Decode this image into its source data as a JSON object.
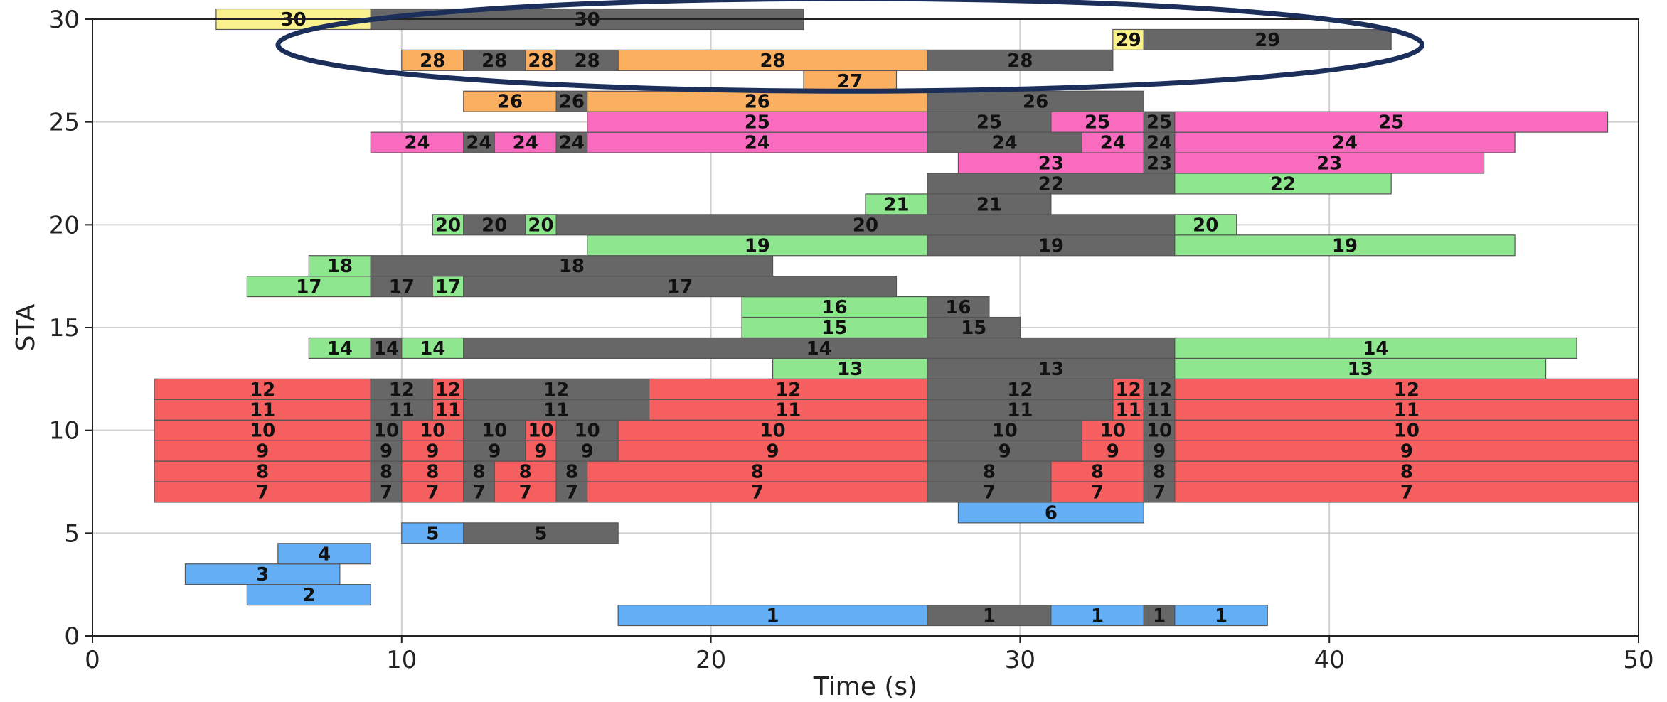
{
  "chart_data": {
    "type": "bar",
    "orientation": "horizontal-timeline",
    "title": "",
    "xlabel": "Time (s)",
    "ylabel": "STA",
    "xlim": [
      0,
      50
    ],
    "ylim": [
      0,
      30
    ],
    "xticks": [
      0,
      10,
      20,
      30,
      40,
      50
    ],
    "yticks": [
      0,
      5,
      10,
      15,
      20,
      25,
      30
    ],
    "grid": true,
    "legend": "none",
    "colors": {
      "red": "#f55f5f",
      "green": "#8ee68e",
      "blue": "#63aef5",
      "orange": "#fbb061",
      "pink": "#f96bbf",
      "yellow": "#fbf28f",
      "gray": "#676767",
      "highlight_ellipse": "#1b2f5a"
    },
    "highlight_ellipse": {
      "x_range": [
        6,
        43
      ],
      "y_range": [
        26.5,
        31
      ]
    },
    "segments": [
      {
        "sta": 1,
        "start": 17,
        "end": 27,
        "color": "blue",
        "label": "1"
      },
      {
        "sta": 1,
        "start": 27,
        "end": 31,
        "color": "gray",
        "label": "1"
      },
      {
        "sta": 1,
        "start": 31,
        "end": 34,
        "color": "blue",
        "label": "1"
      },
      {
        "sta": 1,
        "start": 34,
        "end": 35,
        "color": "gray",
        "label": "1"
      },
      {
        "sta": 1,
        "start": 35,
        "end": 38,
        "color": "blue",
        "label": "1"
      },
      {
        "sta": 2,
        "start": 5,
        "end": 9,
        "color": "blue",
        "label": "2"
      },
      {
        "sta": 3,
        "start": 3,
        "end": 8,
        "color": "blue",
        "label": "3"
      },
      {
        "sta": 4,
        "start": 6,
        "end": 9,
        "color": "blue",
        "label": "4"
      },
      {
        "sta": 5,
        "start": 10,
        "end": 12,
        "color": "blue",
        "label": "5"
      },
      {
        "sta": 5,
        "start": 12,
        "end": 17,
        "color": "gray",
        "label": "5"
      },
      {
        "sta": 6,
        "start": 28,
        "end": 34,
        "color": "blue",
        "label": "6"
      },
      {
        "sta": 7,
        "start": 2,
        "end": 9,
        "color": "red",
        "label": "7"
      },
      {
        "sta": 7,
        "start": 9,
        "end": 10,
        "color": "gray",
        "label": "7"
      },
      {
        "sta": 7,
        "start": 10,
        "end": 12,
        "color": "red",
        "label": "7"
      },
      {
        "sta": 7,
        "start": 12,
        "end": 13,
        "color": "gray",
        "label": "7"
      },
      {
        "sta": 7,
        "start": 13,
        "end": 15,
        "color": "red",
        "label": "7"
      },
      {
        "sta": 7,
        "start": 15,
        "end": 16,
        "color": "gray",
        "label": "7"
      },
      {
        "sta": 7,
        "start": 16,
        "end": 27,
        "color": "red",
        "label": "7"
      },
      {
        "sta": 7,
        "start": 27,
        "end": 31,
        "color": "gray",
        "label": "7"
      },
      {
        "sta": 7,
        "start": 31,
        "end": 34,
        "color": "red",
        "label": "7"
      },
      {
        "sta": 7,
        "start": 34,
        "end": 35,
        "color": "gray",
        "label": "7"
      },
      {
        "sta": 7,
        "start": 35,
        "end": 50,
        "color": "red",
        "label": "7"
      },
      {
        "sta": 8,
        "start": 2,
        "end": 9,
        "color": "red",
        "label": "8"
      },
      {
        "sta": 8,
        "start": 9,
        "end": 10,
        "color": "gray",
        "label": "8"
      },
      {
        "sta": 8,
        "start": 10,
        "end": 12,
        "color": "red",
        "label": "8"
      },
      {
        "sta": 8,
        "start": 12,
        "end": 13,
        "color": "gray",
        "label": "8"
      },
      {
        "sta": 8,
        "start": 13,
        "end": 15,
        "color": "red",
        "label": "8"
      },
      {
        "sta": 8,
        "start": 15,
        "end": 16,
        "color": "gray",
        "label": "8"
      },
      {
        "sta": 8,
        "start": 16,
        "end": 27,
        "color": "red",
        "label": "8"
      },
      {
        "sta": 8,
        "start": 27,
        "end": 31,
        "color": "gray",
        "label": "8"
      },
      {
        "sta": 8,
        "start": 31,
        "end": 34,
        "color": "red",
        "label": "8"
      },
      {
        "sta": 8,
        "start": 34,
        "end": 35,
        "color": "gray",
        "label": "8"
      },
      {
        "sta": 8,
        "start": 35,
        "end": 50,
        "color": "red",
        "label": "8"
      },
      {
        "sta": 9,
        "start": 2,
        "end": 9,
        "color": "red",
        "label": "9"
      },
      {
        "sta": 9,
        "start": 9,
        "end": 10,
        "color": "gray",
        "label": "9"
      },
      {
        "sta": 9,
        "start": 10,
        "end": 12,
        "color": "red",
        "label": "9"
      },
      {
        "sta": 9,
        "start": 12,
        "end": 14,
        "color": "gray",
        "label": "9"
      },
      {
        "sta": 9,
        "start": 14,
        "end": 15,
        "color": "red",
        "label": "9"
      },
      {
        "sta": 9,
        "start": 15,
        "end": 17,
        "color": "gray",
        "label": "9"
      },
      {
        "sta": 9,
        "start": 17,
        "end": 27,
        "color": "red",
        "label": "9"
      },
      {
        "sta": 9,
        "start": 27,
        "end": 32,
        "color": "gray",
        "label": "9"
      },
      {
        "sta": 9,
        "start": 32,
        "end": 34,
        "color": "red",
        "label": "9"
      },
      {
        "sta": 9,
        "start": 34,
        "end": 35,
        "color": "gray",
        "label": "9"
      },
      {
        "sta": 9,
        "start": 35,
        "end": 50,
        "color": "red",
        "label": "9"
      },
      {
        "sta": 10,
        "start": 2,
        "end": 9,
        "color": "red",
        "label": "10"
      },
      {
        "sta": 10,
        "start": 9,
        "end": 10,
        "color": "gray",
        "label": "10"
      },
      {
        "sta": 10,
        "start": 10,
        "end": 12,
        "color": "red",
        "label": "10"
      },
      {
        "sta": 10,
        "start": 12,
        "end": 14,
        "color": "gray",
        "label": "10"
      },
      {
        "sta": 10,
        "start": 14,
        "end": 15,
        "color": "red",
        "label": "10"
      },
      {
        "sta": 10,
        "start": 15,
        "end": 17,
        "color": "gray",
        "label": "10"
      },
      {
        "sta": 10,
        "start": 17,
        "end": 27,
        "color": "red",
        "label": "10"
      },
      {
        "sta": 10,
        "start": 27,
        "end": 32,
        "color": "gray",
        "label": "10"
      },
      {
        "sta": 10,
        "start": 32,
        "end": 34,
        "color": "red",
        "label": "10"
      },
      {
        "sta": 10,
        "start": 34,
        "end": 35,
        "color": "gray",
        "label": "10"
      },
      {
        "sta": 10,
        "start": 35,
        "end": 50,
        "color": "red",
        "label": "10"
      },
      {
        "sta": 11,
        "start": 2,
        "end": 9,
        "color": "red",
        "label": "11"
      },
      {
        "sta": 11,
        "start": 9,
        "end": 11,
        "color": "gray",
        "label": "11"
      },
      {
        "sta": 11,
        "start": 11,
        "end": 12,
        "color": "red",
        "label": "11"
      },
      {
        "sta": 11,
        "start": 12,
        "end": 18,
        "color": "gray",
        "label": "11"
      },
      {
        "sta": 11,
        "start": 18,
        "end": 27,
        "color": "red",
        "label": "11"
      },
      {
        "sta": 11,
        "start": 27,
        "end": 33,
        "color": "gray",
        "label": "11"
      },
      {
        "sta": 11,
        "start": 33,
        "end": 34,
        "color": "red",
        "label": "11"
      },
      {
        "sta": 11,
        "start": 34,
        "end": 35,
        "color": "gray",
        "label": "11"
      },
      {
        "sta": 11,
        "start": 35,
        "end": 50,
        "color": "red",
        "label": "11"
      },
      {
        "sta": 12,
        "start": 2,
        "end": 9,
        "color": "red",
        "label": "12"
      },
      {
        "sta": 12,
        "start": 9,
        "end": 11,
        "color": "gray",
        "label": "12"
      },
      {
        "sta": 12,
        "start": 11,
        "end": 12,
        "color": "red",
        "label": "12"
      },
      {
        "sta": 12,
        "start": 12,
        "end": 18,
        "color": "gray",
        "label": "12"
      },
      {
        "sta": 12,
        "start": 18,
        "end": 27,
        "color": "red",
        "label": "12"
      },
      {
        "sta": 12,
        "start": 27,
        "end": 33,
        "color": "gray",
        "label": "12"
      },
      {
        "sta": 12,
        "start": 33,
        "end": 34,
        "color": "red",
        "label": "12"
      },
      {
        "sta": 12,
        "start": 34,
        "end": 35,
        "color": "gray",
        "label": "12"
      },
      {
        "sta": 12,
        "start": 35,
        "end": 50,
        "color": "red",
        "label": "12"
      },
      {
        "sta": 13,
        "start": 22,
        "end": 27,
        "color": "green",
        "label": "13"
      },
      {
        "sta": 13,
        "start": 27,
        "end": 35,
        "color": "gray",
        "label": "13"
      },
      {
        "sta": 13,
        "start": 35,
        "end": 47,
        "color": "green",
        "label": "13"
      },
      {
        "sta": 14,
        "start": 7,
        "end": 9,
        "color": "green",
        "label": "14"
      },
      {
        "sta": 14,
        "start": 9,
        "end": 10,
        "color": "gray",
        "label": "14"
      },
      {
        "sta": 14,
        "start": 10,
        "end": 12,
        "color": "green",
        "label": "14"
      },
      {
        "sta": 14,
        "start": 12,
        "end": 35,
        "color": "gray",
        "label": "14"
      },
      {
        "sta": 14,
        "start": 35,
        "end": 48,
        "color": "green",
        "label": "14"
      },
      {
        "sta": 15,
        "start": 21,
        "end": 27,
        "color": "green",
        "label": "15"
      },
      {
        "sta": 15,
        "start": 27,
        "end": 30,
        "color": "gray",
        "label": "15"
      },
      {
        "sta": 16,
        "start": 21,
        "end": 27,
        "color": "green",
        "label": "16"
      },
      {
        "sta": 16,
        "start": 27,
        "end": 29,
        "color": "gray",
        "label": "16"
      },
      {
        "sta": 17,
        "start": 5,
        "end": 9,
        "color": "green",
        "label": "17"
      },
      {
        "sta": 17,
        "start": 9,
        "end": 11,
        "color": "gray",
        "label": "17"
      },
      {
        "sta": 17,
        "start": 11,
        "end": 12,
        "color": "green",
        "label": "17"
      },
      {
        "sta": 17,
        "start": 12,
        "end": 26,
        "color": "gray",
        "label": "17"
      },
      {
        "sta": 18,
        "start": 7,
        "end": 9,
        "color": "green",
        "label": "18"
      },
      {
        "sta": 18,
        "start": 9,
        "end": 22,
        "color": "gray",
        "label": "18"
      },
      {
        "sta": 19,
        "start": 16,
        "end": 27,
        "color": "green",
        "label": "19"
      },
      {
        "sta": 19,
        "start": 27,
        "end": 35,
        "color": "gray",
        "label": "19"
      },
      {
        "sta": 19,
        "start": 35,
        "end": 46,
        "color": "green",
        "label": "19"
      },
      {
        "sta": 20,
        "start": 11,
        "end": 12,
        "color": "green",
        "label": "20"
      },
      {
        "sta": 20,
        "start": 12,
        "end": 14,
        "color": "gray",
        "label": "20"
      },
      {
        "sta": 20,
        "start": 14,
        "end": 15,
        "color": "green",
        "label": "20"
      },
      {
        "sta": 20,
        "start": 15,
        "end": 35,
        "color": "gray",
        "label": "20"
      },
      {
        "sta": 20,
        "start": 35,
        "end": 37,
        "color": "green",
        "label": "20"
      },
      {
        "sta": 21,
        "start": 25,
        "end": 27,
        "color": "green",
        "label": "21"
      },
      {
        "sta": 21,
        "start": 27,
        "end": 31,
        "color": "gray",
        "label": "21"
      },
      {
        "sta": 22,
        "start": 27,
        "end": 35,
        "color": "gray",
        "label": "22"
      },
      {
        "sta": 22,
        "start": 35,
        "end": 42,
        "color": "green",
        "label": "22"
      },
      {
        "sta": 23,
        "start": 28,
        "end": 34,
        "color": "pink",
        "label": "23"
      },
      {
        "sta": 23,
        "start": 34,
        "end": 35,
        "color": "gray",
        "label": "23"
      },
      {
        "sta": 23,
        "start": 35,
        "end": 45,
        "color": "pink",
        "label": "23"
      },
      {
        "sta": 24,
        "start": 9,
        "end": 12,
        "color": "pink",
        "label": "24"
      },
      {
        "sta": 24,
        "start": 12,
        "end": 13,
        "color": "gray",
        "label": "24"
      },
      {
        "sta": 24,
        "start": 13,
        "end": 15,
        "color": "pink",
        "label": "24"
      },
      {
        "sta": 24,
        "start": 15,
        "end": 16,
        "color": "gray",
        "label": "24"
      },
      {
        "sta": 24,
        "start": 16,
        "end": 27,
        "color": "pink",
        "label": "24"
      },
      {
        "sta": 24,
        "start": 27,
        "end": 32,
        "color": "gray",
        "label": "24"
      },
      {
        "sta": 24,
        "start": 32,
        "end": 34,
        "color": "pink",
        "label": "24"
      },
      {
        "sta": 24,
        "start": 34,
        "end": 35,
        "color": "gray",
        "label": "24"
      },
      {
        "sta": 24,
        "start": 35,
        "end": 46,
        "color": "pink",
        "label": "24"
      },
      {
        "sta": 25,
        "start": 16,
        "end": 27,
        "color": "pink",
        "label": "25"
      },
      {
        "sta": 25,
        "start": 27,
        "end": 31,
        "color": "gray",
        "label": "25"
      },
      {
        "sta": 25,
        "start": 31,
        "end": 34,
        "color": "pink",
        "label": "25"
      },
      {
        "sta": 25,
        "start": 34,
        "end": 35,
        "color": "gray",
        "label": "25"
      },
      {
        "sta": 25,
        "start": 35,
        "end": 49,
        "color": "pink",
        "label": "25"
      },
      {
        "sta": 26,
        "start": 12,
        "end": 15,
        "color": "orange",
        "label": "26"
      },
      {
        "sta": 26,
        "start": 15,
        "end": 16,
        "color": "gray",
        "label": "26"
      },
      {
        "sta": 26,
        "start": 16,
        "end": 27,
        "color": "orange",
        "label": "26"
      },
      {
        "sta": 26,
        "start": 27,
        "end": 34,
        "color": "gray",
        "label": "26"
      },
      {
        "sta": 27,
        "start": 23,
        "end": 26,
        "color": "orange",
        "label": "27"
      },
      {
        "sta": 28,
        "start": 10,
        "end": 12,
        "color": "orange",
        "label": "28"
      },
      {
        "sta": 28,
        "start": 12,
        "end": 14,
        "color": "gray",
        "label": "28"
      },
      {
        "sta": 28,
        "start": 14,
        "end": 15,
        "color": "orange",
        "label": "28"
      },
      {
        "sta": 28,
        "start": 15,
        "end": 17,
        "color": "gray",
        "label": "28"
      },
      {
        "sta": 28,
        "start": 17,
        "end": 27,
        "color": "orange",
        "label": "28"
      },
      {
        "sta": 28,
        "start": 27,
        "end": 33,
        "color": "gray",
        "label": "28"
      },
      {
        "sta": 29,
        "start": 33,
        "end": 34,
        "color": "yellow",
        "label": "29"
      },
      {
        "sta": 29,
        "start": 34,
        "end": 42,
        "color": "gray",
        "label": "29"
      },
      {
        "sta": 30,
        "start": 4,
        "end": 9,
        "color": "yellow",
        "label": "30"
      },
      {
        "sta": 30,
        "start": 9,
        "end": 23,
        "color": "gray",
        "label": "30"
      }
    ]
  }
}
